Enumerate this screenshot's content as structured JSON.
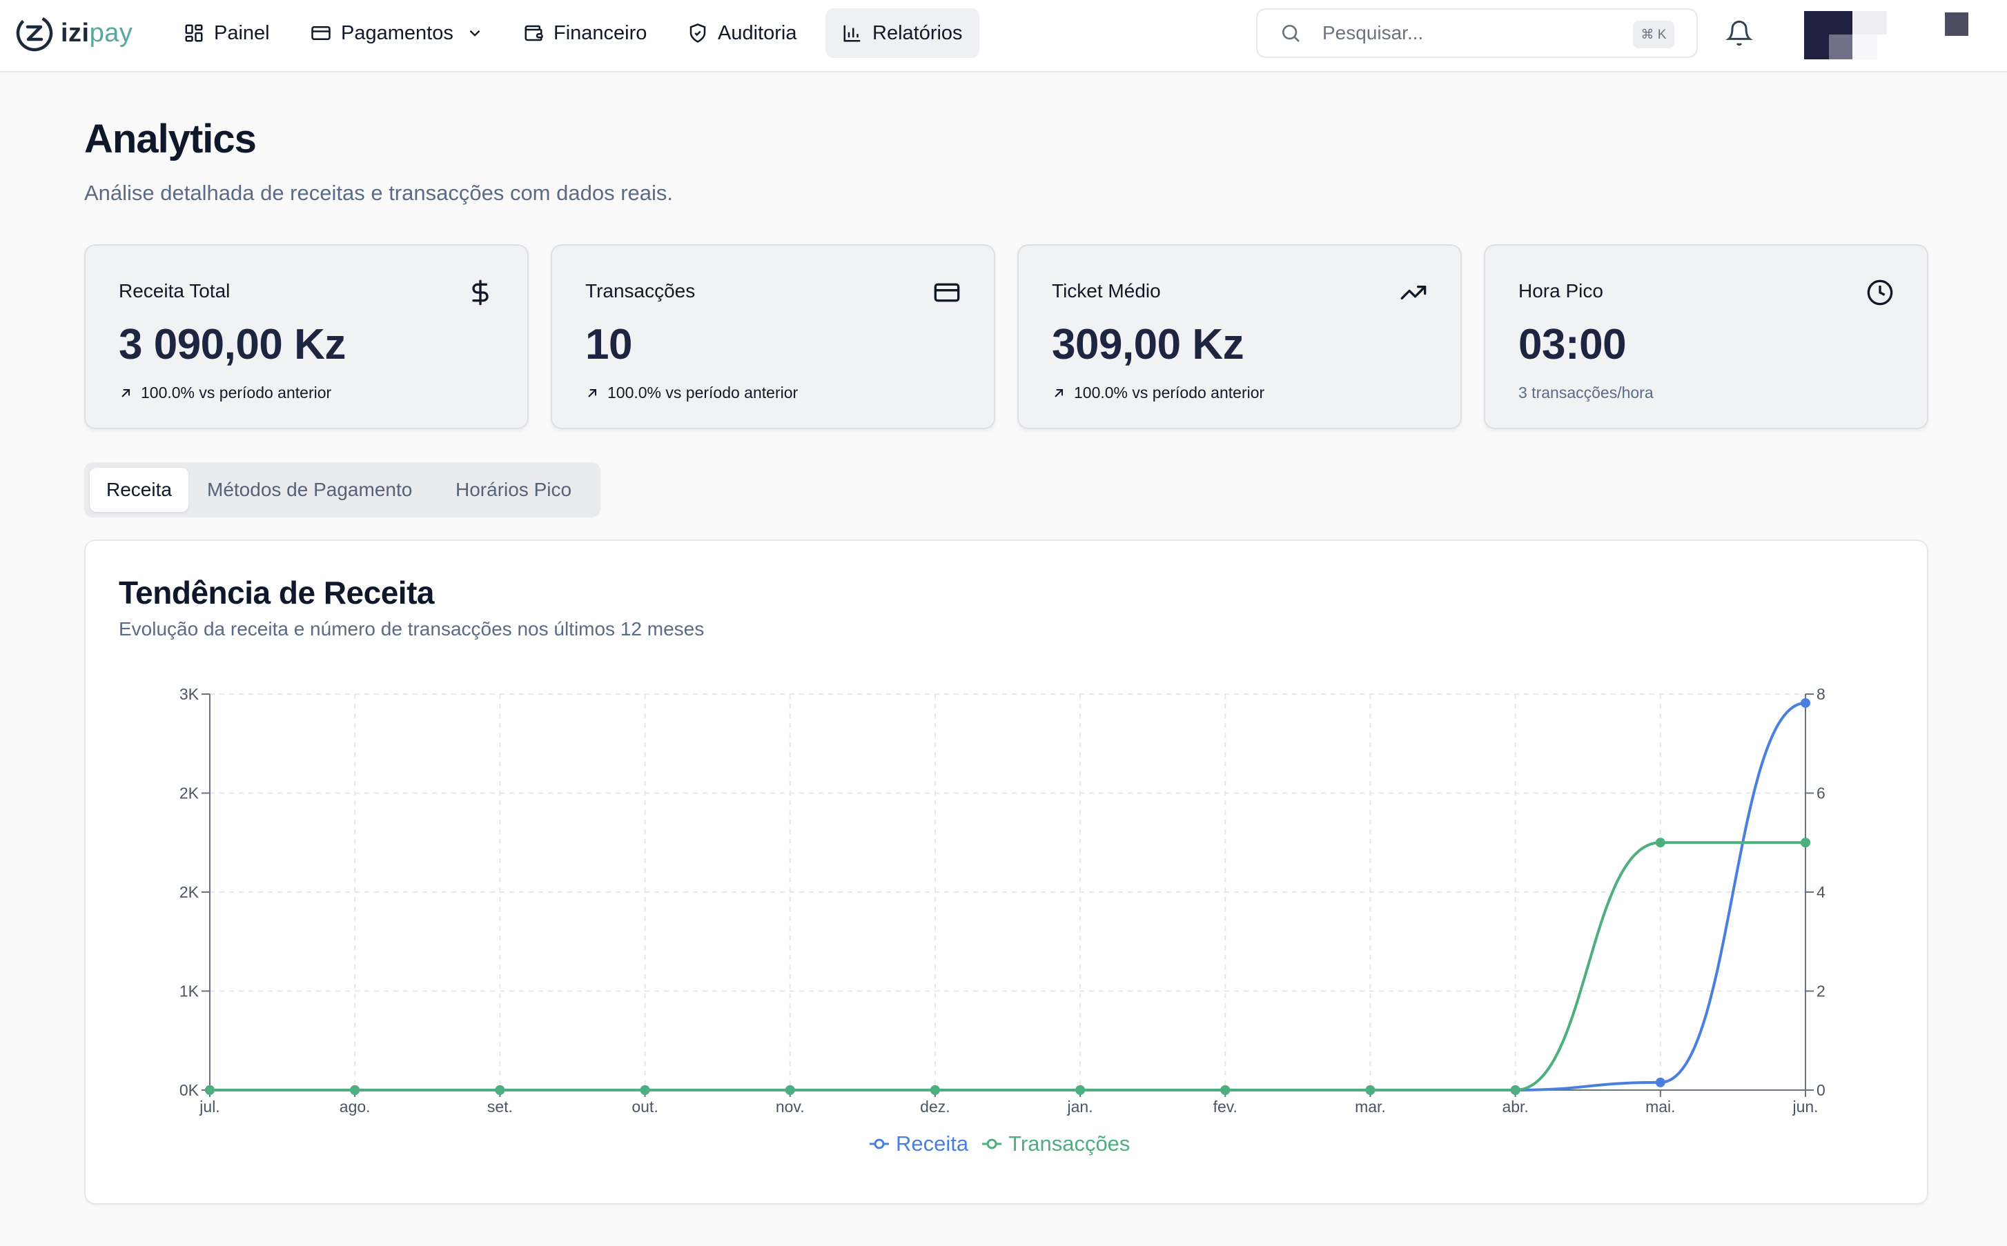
{
  "nav": {
    "logo_prefix": "izi",
    "logo_suffix": "pay",
    "items": [
      {
        "label": "Painel",
        "icon": "dashboard-grid-icon"
      },
      {
        "label": "Pagamentos",
        "icon": "card-icon"
      },
      {
        "label": "Financeiro",
        "icon": "wallet-icon"
      },
      {
        "label": "Auditoria",
        "icon": "shield-icon"
      },
      {
        "label": "Relatórios",
        "icon": "bar-chart-icon"
      }
    ],
    "active": "Relatórios",
    "search_placeholder": "Pesquisar...",
    "search_shortcut": "⌘ K"
  },
  "header": {
    "title": "Analytics",
    "subtitle": "Análise detalhada de receitas e transacções com dados reais."
  },
  "stats": [
    {
      "label": "Receita Total",
      "value": "3 090,00 Kz",
      "delta": "100.0% vs período anterior",
      "icon": "dollar-icon"
    },
    {
      "label": "Transacções",
      "value": "10",
      "delta": "100.0% vs período anterior",
      "icon": "credit-card-icon"
    },
    {
      "label": "Ticket Médio",
      "value": "309,00 Kz",
      "delta": "100.0% vs período anterior",
      "icon": "trending-up-icon"
    },
    {
      "label": "Hora Pico",
      "value": "03:00",
      "delta": "3 transacções/hora",
      "icon": "clock-icon"
    }
  ],
  "tabs": [
    {
      "label": "Receita",
      "active": true
    },
    {
      "label": "Métodos de Pagamento",
      "active": false
    },
    {
      "label": "Horários Pico",
      "active": false
    }
  ],
  "chart": {
    "title": "Tendência de Receita",
    "subtitle": "Evolução da receita e número de transacções nos últimos 12 meses"
  },
  "chart_data": {
    "type": "line",
    "categories": [
      "jul.",
      "ago.",
      "set.",
      "out.",
      "nov.",
      "dez.",
      "jan.",
      "fev.",
      "mar.",
      "abr.",
      "mai.",
      "jun."
    ],
    "series": [
      {
        "name": "Receita",
        "axis": "left",
        "color": "#4a7fe0",
        "values": [
          0,
          0,
          0,
          0,
          0,
          0,
          0,
          0,
          0,
          0,
          60,
          3030
        ]
      },
      {
        "name": "Transacções",
        "axis": "right",
        "color": "#4caf7d",
        "values": [
          0,
          0,
          0,
          0,
          0,
          0,
          0,
          0,
          0,
          0,
          5,
          5
        ]
      }
    ],
    "y_left": {
      "min": 0,
      "max": 3100,
      "ticks": [
        0,
        775,
        1550,
        2325,
        3100
      ],
      "tick_labels": [
        "0K",
        "1K",
        "2K",
        "2K",
        "3K"
      ]
    },
    "y_right": {
      "min": 0,
      "max": 8,
      "ticks": [
        0,
        2,
        4,
        6,
        8
      ],
      "tick_labels": [
        "0",
        "2",
        "4",
        "6",
        "8"
      ]
    },
    "grid": true,
    "legend": "bottom-center"
  }
}
